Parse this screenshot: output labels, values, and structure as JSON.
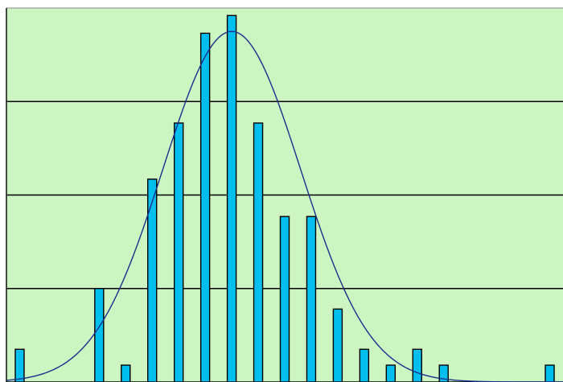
{
  "chart_data": {
    "type": "bar",
    "x": [
      0,
      1,
      2,
      3,
      4,
      5,
      6,
      7,
      8,
      9,
      10,
      11,
      12,
      13,
      14,
      15,
      16,
      17,
      18,
      19,
      20
    ],
    "series": [
      {
        "values": [
          0.35,
          0,
          0,
          1.0,
          0.18,
          2.17,
          2.77,
          3.73,
          3.92,
          2.77,
          1.77,
          1.77,
          0.78,
          0.35,
          0.18,
          0.35,
          0.18,
          0,
          0,
          0,
          0.18
        ]
      }
    ],
    "overlay_curve": {
      "type": "line",
      "shape": "normal-distribution",
      "peak_x": 8.0,
      "peak_y": 3.75,
      "sigma": 2.6
    },
    "ylim": [
      0,
      4
    ],
    "xlim": [
      -0.5,
      20.5
    ],
    "grid": true,
    "colors": {
      "plot_background": "#ccf5c2",
      "bar_fill": "#00bfef",
      "bar_stroke": "#000000",
      "curve": "#1a2f8c",
      "gridline": "#000000"
    }
  }
}
